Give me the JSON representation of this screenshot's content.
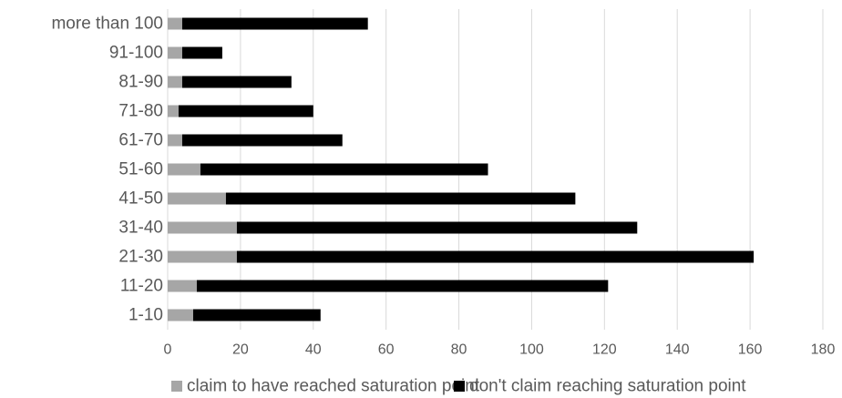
{
  "chart_data": {
    "type": "bar",
    "orientation": "horizontal",
    "stacked": true,
    "title": "",
    "xlabel": "",
    "ylabel": "",
    "categories": [
      "1-10",
      "11-20",
      "21-30",
      "31-40",
      "41-50",
      "51-60",
      "61-70",
      "71-80",
      "81-90",
      "91-100",
      "more than 100"
    ],
    "series": [
      {
        "name": "claim to have reached saturation point",
        "color": "#a6a6a6",
        "values": [
          7,
          8,
          19,
          19,
          16,
          9,
          4,
          3,
          4,
          4,
          4
        ]
      },
      {
        "name": "don't claim reaching saturation point",
        "color": "#000000",
        "values": [
          35,
          113,
          142,
          110,
          96,
          79,
          44,
          37,
          30,
          11,
          51
        ]
      }
    ],
    "xlim": [
      0,
      180
    ],
    "xticks": [
      0,
      20,
      40,
      60,
      80,
      100,
      120,
      140,
      160,
      180
    ],
    "grid": "vertical",
    "legend_position": "bottom"
  }
}
